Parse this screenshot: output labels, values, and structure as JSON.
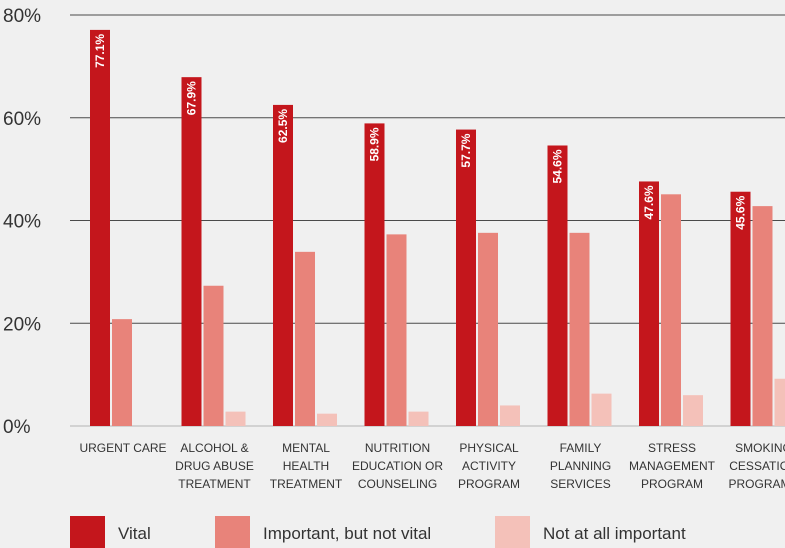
{
  "chart_data": {
    "type": "bar",
    "title": "",
    "xlabel": "",
    "ylabel": "",
    "ylim": [
      0,
      80
    ],
    "yticks": [
      0,
      20,
      40,
      60,
      80
    ],
    "ytick_labels": [
      "0%",
      "20%",
      "40%",
      "60%",
      "80%"
    ],
    "grid": true,
    "legend": "bottom",
    "categories": [
      "URGENT CARE",
      "ALCOHOL & DRUG ABUSE TREATMENT",
      "MENTAL HEALTH TREATMENT",
      "NUTRITION EDUCATION OR COUNSELING",
      "PHYSICAL ACTIVITY PROGRAM",
      "FAMILY PLANNING SERVICES",
      "STRESS MANAGEMENT PROGRAM",
      "SMOKING CESSATION PROGRAMS"
    ],
    "category_lines": [
      [
        "URGENT CARE"
      ],
      [
        "ALCOHOL &",
        "DRUG ABUSE",
        "TREATMENT"
      ],
      [
        "MENTAL",
        "HEALTH",
        "TREATMENT"
      ],
      [
        "NUTRITION",
        "EDUCATION OR",
        "COUNSELING"
      ],
      [
        "PHYSICAL",
        "ACTIVITY",
        "PROGRAM"
      ],
      [
        "FAMILY",
        "PLANNING",
        "SERVICES"
      ],
      [
        "STRESS",
        "MANAGEMENT",
        "PROGRAM"
      ],
      [
        "SMOKING",
        "CESSATION",
        "PROGRAMS"
      ]
    ],
    "series": [
      {
        "name": "Vital",
        "color": "#c4161c",
        "values": [
          77.1,
          67.9,
          62.5,
          58.9,
          57.7,
          54.6,
          47.6,
          45.6
        ],
        "labels": [
          "77.1%",
          "67.9%",
          "62.5%",
          "58.9%",
          "57.7%",
          "54.6%",
          "47.6%",
          "45.6%"
        ]
      },
      {
        "name": "Important, but not vital",
        "color": "#e8837a",
        "values": [
          20.8,
          27.3,
          33.9,
          37.3,
          37.6,
          37.6,
          45.1,
          42.8
        ]
      },
      {
        "name": "Not at all important",
        "color": "#f4c1b9",
        "values": [
          0,
          2.8,
          2.4,
          2.8,
          4.0,
          6.3,
          6.0,
          9.2
        ]
      }
    ]
  }
}
